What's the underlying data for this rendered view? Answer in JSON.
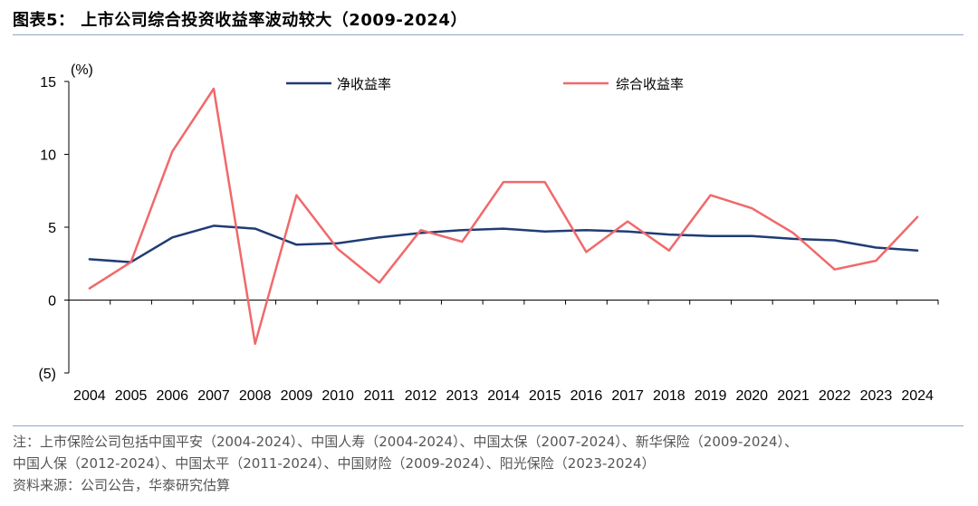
{
  "figure": {
    "title": "图表5： 上市公司综合投资收益率波动较大（2009-2024）",
    "note_line1": "注：上市保险公司包括中国平安（2004-2024）、中国人寿（2004-2024）、中国太保（2007-2024）、新华保险（2009-2024）、",
    "note_line2": "中国人保（2012-2024）、中国太平（2011-2024）、中国财险（2009-2024）、阳光保险（2023-2024）",
    "source": "资料来源：公司公告，华泰研究估算"
  },
  "chart_data": {
    "type": "line",
    "ylabel": "(%)",
    "ylim": [
      -5,
      15
    ],
    "yticks": [
      15,
      10,
      5,
      0,
      -5
    ],
    "ytick_labels": [
      "15",
      "10",
      "5",
      "0",
      "(5)"
    ],
    "x": [
      "2004",
      "2005",
      "2006",
      "2007",
      "2008",
      "2009",
      "2010",
      "2011",
      "2012",
      "2013",
      "2014",
      "2015",
      "2016",
      "2017",
      "2018",
      "2019",
      "2020",
      "2021",
      "2022",
      "2023",
      "2024"
    ],
    "legend_position": "top",
    "series": [
      {
        "name": "净收益率",
        "color": "#1f3c74",
        "values": [
          2.8,
          2.6,
          4.3,
          5.1,
          4.9,
          3.8,
          3.9,
          4.3,
          4.6,
          4.8,
          4.9,
          4.7,
          4.8,
          4.7,
          4.5,
          4.4,
          4.4,
          4.2,
          4.1,
          3.6,
          3.4
        ]
      },
      {
        "name": "综合收益率",
        "color": "#f0696b",
        "values": [
          0.8,
          2.6,
          10.2,
          14.5,
          -3.0,
          7.2,
          3.5,
          1.2,
          4.8,
          4.0,
          8.1,
          8.1,
          3.3,
          5.4,
          3.4,
          7.2,
          6.3,
          4.6,
          2.1,
          2.7,
          5.7
        ]
      }
    ]
  }
}
